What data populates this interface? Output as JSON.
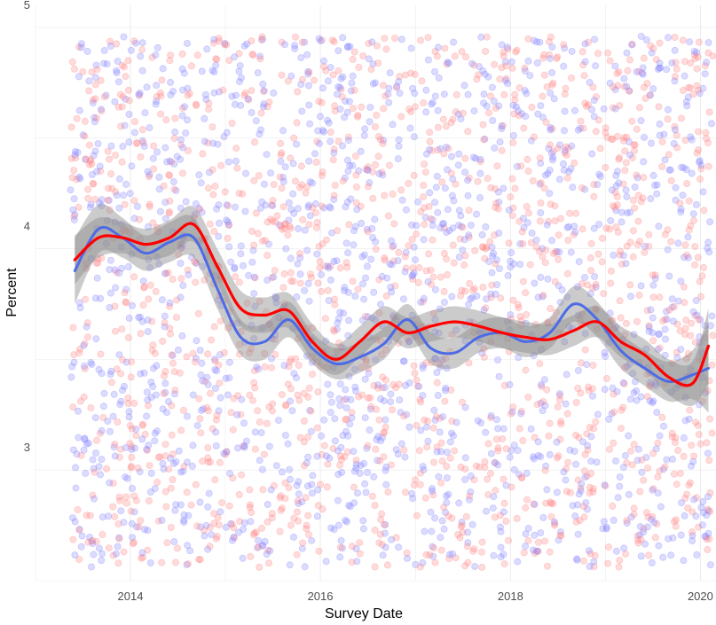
{
  "chart_data": {
    "type": "scatter",
    "title": "",
    "xlabel": "Survey Date",
    "ylabel": "Percent",
    "x_ticks": [
      "2014",
      "2016",
      "2018",
      "2020"
    ],
    "y_ticks": [
      "3",
      "4",
      "5"
    ],
    "xlim": [
      "2013-01-01",
      "2020-03-01"
    ],
    "ylim": [
      2.4,
      5.0
    ],
    "grid": true,
    "legend": "none",
    "colors": {
      "red_points": "#ff8080",
      "blue_points": "#8080ff",
      "red_trend": "#ff0000",
      "blue_trend": "#4d6be6",
      "band": "#8c8c8c"
    },
    "points_note": "dense scatter of roughly 1500 red and 1500 blue semi-transparent points spanning 2.45–4.85 percent across the full date range",
    "series": [
      {
        "color": "red",
        "x": [
          "2013-06",
          "2013-09",
          "2013-12",
          "2014-03",
          "2014-06",
          "2014-09",
          "2014-12",
          "2015-03",
          "2015-06",
          "2015-09",
          "2015-12",
          "2016-03",
          "2016-06",
          "2016-09",
          "2016-12",
          "2017-03",
          "2017-06",
          "2017-09",
          "2017-12",
          "2018-03",
          "2018-06",
          "2018-09",
          "2018-12",
          "2019-03",
          "2019-06",
          "2019-09",
          "2019-12",
          "2020-02"
        ],
        "y": [
          3.85,
          3.95,
          3.95,
          3.92,
          3.95,
          4.01,
          3.82,
          3.63,
          3.6,
          3.62,
          3.48,
          3.4,
          3.48,
          3.57,
          3.52,
          3.55,
          3.57,
          3.55,
          3.52,
          3.5,
          3.49,
          3.53,
          3.57,
          3.48,
          3.42,
          3.32,
          3.29,
          3.46
        ],
        "band_low": [
          3.74,
          3.86,
          3.88,
          3.85,
          3.87,
          3.93,
          3.74,
          3.55,
          3.52,
          3.54,
          3.4,
          3.33,
          3.41,
          3.5,
          3.45,
          3.48,
          3.5,
          3.48,
          3.45,
          3.43,
          3.42,
          3.46,
          3.5,
          3.41,
          3.35,
          3.24,
          3.19,
          3.29
        ],
        "band_high": [
          3.96,
          4.04,
          4.02,
          3.99,
          4.03,
          4.09,
          3.9,
          3.71,
          3.68,
          3.7,
          3.56,
          3.47,
          3.55,
          3.64,
          3.59,
          3.62,
          3.64,
          3.62,
          3.59,
          3.57,
          3.56,
          3.6,
          3.64,
          3.55,
          3.49,
          3.4,
          3.39,
          3.63
        ]
      },
      {
        "color": "blue",
        "x": [
          "2013-06",
          "2013-09",
          "2013-12",
          "2014-03",
          "2014-06",
          "2014-09",
          "2014-12",
          "2015-03",
          "2015-06",
          "2015-09",
          "2015-12",
          "2016-03",
          "2016-06",
          "2016-09",
          "2016-12",
          "2017-03",
          "2017-06",
          "2017-09",
          "2017-12",
          "2018-03",
          "2018-06",
          "2018-09",
          "2018-12",
          "2019-03",
          "2019-06",
          "2019-09",
          "2019-12",
          "2020-02"
        ],
        "y": [
          3.8,
          3.99,
          3.95,
          3.88,
          3.93,
          3.95,
          3.72,
          3.5,
          3.48,
          3.58,
          3.45,
          3.38,
          3.41,
          3.47,
          3.58,
          3.45,
          3.43,
          3.5,
          3.52,
          3.48,
          3.52,
          3.65,
          3.58,
          3.44,
          3.36,
          3.3,
          3.33,
          3.36
        ],
        "band_low": [
          3.65,
          3.88,
          3.86,
          3.8,
          3.84,
          3.86,
          3.63,
          3.42,
          3.4,
          3.5,
          3.38,
          3.31,
          3.34,
          3.4,
          3.51,
          3.38,
          3.36,
          3.43,
          3.45,
          3.41,
          3.45,
          3.57,
          3.5,
          3.36,
          3.28,
          3.21,
          3.22,
          3.16
        ],
        "band_high": [
          3.95,
          4.1,
          4.04,
          3.96,
          4.02,
          4.04,
          3.81,
          3.58,
          3.56,
          3.66,
          3.52,
          3.45,
          3.48,
          3.54,
          3.65,
          3.52,
          3.5,
          3.57,
          3.59,
          3.55,
          3.59,
          3.73,
          3.66,
          3.52,
          3.44,
          3.39,
          3.44,
          3.56
        ]
      }
    ]
  }
}
